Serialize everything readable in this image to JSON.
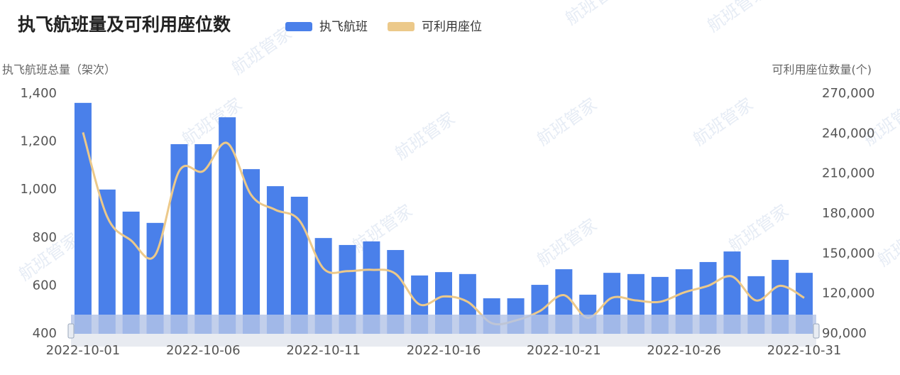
{
  "chart_data": {
    "type": "bar-line",
    "title": "执飞航班量及可利用座位数",
    "watermark": "航班管家",
    "y_label": "执飞航班总量（架次）",
    "y2_label": "可利用座位数量(个)",
    "categories": [
      "2022-10-01",
      null,
      null,
      null,
      null,
      "2022-10-06",
      null,
      null,
      null,
      null,
      "2022-10-11",
      null,
      null,
      null,
      null,
      "2022-10-16",
      null,
      null,
      null,
      null,
      "2022-10-21",
      null,
      null,
      null,
      null,
      "2022-10-26",
      null,
      null,
      null,
      null,
      "2022-10-31"
    ],
    "series": [
      {
        "name": "执飞航班",
        "type": "bar",
        "color": "#4a80ea",
        "values": [
          1362,
          1001,
          909,
          862,
          1190,
          1190,
          1302,
          1086,
          1015,
          971,
          799,
          770,
          785,
          749,
          643,
          657,
          649,
          548,
          548,
          604,
          669,
          563,
          654,
          649,
          637,
          669,
          699,
          743,
          640,
          708,
          654
        ]
      },
      {
        "name": "可利用座位",
        "type": "line",
        "axis": "y2",
        "color": "#ecc98a",
        "values": [
          241000,
          178000,
          160000,
          149000,
          212000,
          212000,
          233000,
          194000,
          183000,
          175000,
          139000,
          137000,
          138000,
          135000,
          112000,
          118000,
          114000,
          98000,
          100000,
          107000,
          119000,
          102000,
          117000,
          115000,
          114000,
          121000,
          126000,
          133000,
          115000,
          126000,
          117000
        ]
      }
    ],
    "ylim": [
      400,
      1400
    ],
    "yticks": [
      400,
      600,
      800,
      {
        "value": 1000,
        "label": "1,000"
      },
      {
        "value": 1200,
        "label": "1,200"
      },
      {
        "value": 1400,
        "label": "1,400"
      }
    ],
    "y2lim": [
      90000,
      270000
    ],
    "y2ticks": [
      {
        "value": 90000,
        "label": "90,000"
      },
      {
        "value": 120000,
        "label": "120,000"
      },
      {
        "value": 150000,
        "label": "150,000"
      },
      {
        "value": 180000,
        "label": "180,000"
      },
      {
        "value": 210000,
        "label": "210,000"
      },
      {
        "value": 240000,
        "label": "240,000"
      },
      {
        "value": 270000,
        "label": "270,000"
      }
    ],
    "grid": false,
    "legend": "top"
  }
}
